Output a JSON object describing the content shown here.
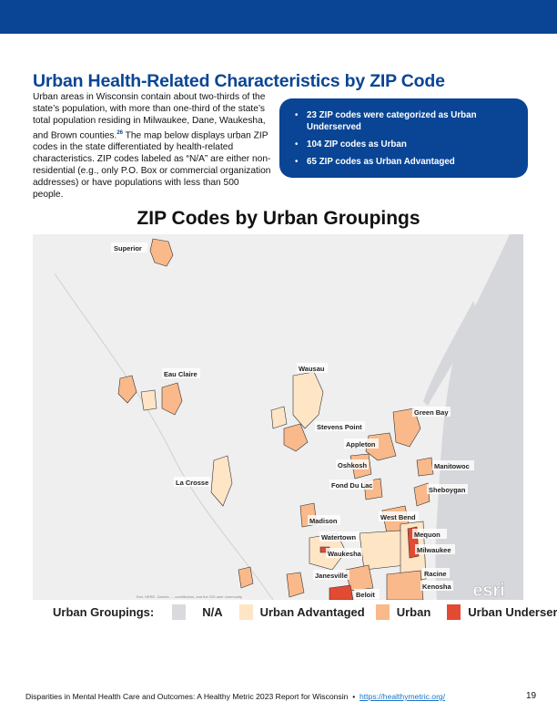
{
  "header": {
    "color": "#0a4595"
  },
  "title": "Urban Health-Related Characteristics by ZIP Code",
  "intro": {
    "text_before": "Urban areas in Wisconsin contain about two-thirds of the state’s population, with more than one-third of the state’s total population residing in Milwaukee, Dane, Waukesha, and Brown counties.",
    "footnote": "26",
    "text_after": " The map below displays urban ZIP codes in the state differentiated by health-related characteristics. ZIP codes labeled as “N/A” are either non-residential (e.g., only P.O. Box or commercial organization addresses) or have populations with less than 500 people."
  },
  "callout": {
    "items": [
      "23 ZIP codes were categorized as Urban Underserved",
      "104 ZIP codes as Urban",
      "65 ZIP codes as Urban Advantaged"
    ]
  },
  "map": {
    "title": "ZIP Codes by Urban Groupings",
    "cities": [
      "Superior",
      "Eau Claire",
      "Wausau",
      "Stevens Point",
      "Green Bay",
      "Appleton",
      "Oshkosh",
      "Manitowoc",
      "Fond Du Lac",
      "Sheboygan",
      "La Crosse",
      "West Bend",
      "Madison",
      "Watertown",
      "Mequon",
      "Waukesha",
      "Milwaukee",
      "Janesville",
      "Racine",
      "Kenosha",
      "Beloit"
    ],
    "attribution": "Esri, HERE, Garmin, ... contributors, and the GIS user community",
    "esri_logo": "POWERED BY esri"
  },
  "legend": {
    "label": "Urban Groupings:",
    "items": [
      {
        "label": "N/A",
        "color": "#d9d9de"
      },
      {
        "label": "Urban Advantaged",
        "color": "#fde5c6"
      },
      {
        "label": "Urban",
        "color": "#f9b98a"
      },
      {
        "label": "Urban Underserved",
        "color": "#e34a33"
      }
    ]
  },
  "footer": {
    "text": "Disparities in Mental Health Care and Outcomes: A Healthy Metric 2023 Report for Wisconsin",
    "separator": "•",
    "link": "https://healthymetric.org/",
    "page": "19"
  }
}
